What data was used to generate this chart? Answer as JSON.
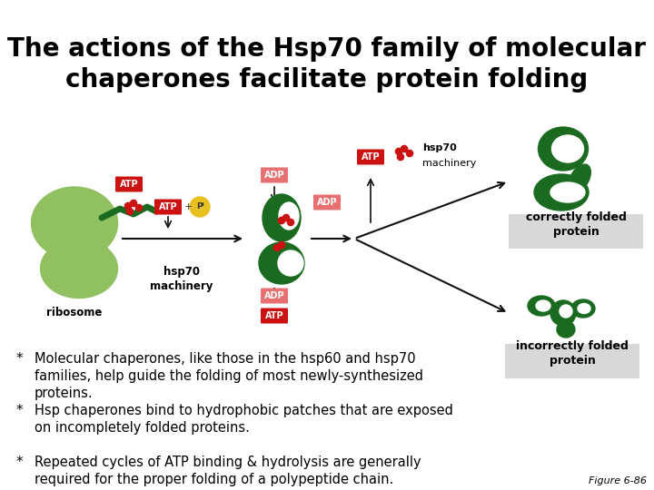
{
  "title_line1": "The actions of the Hsp70 family of molecular",
  "title_line2": "chaperones facilitate protein folding",
  "title_fontsize": 20,
  "title_bold": true,
  "bullet1_text": "Molecular chaperones, like those in the hsp60 and hsp70\nfamilies, help guide the folding of most newly-synthesized\nproteins.",
  "bullet2_text": "Hsp chaperones bind to hydrophobic patches that are exposed\non incompletely folded proteins.",
  "bullet3_text": "Repeated cycles of ATP binding & hydrolysis are generally\nrequired for the proper folding of a polypeptide chain.",
  "figure_label": "Figure 6-86",
  "bullet_fontsize": 10.5,
  "figure_label_fontsize": 8,
  "bg_color": "#ffffff",
  "text_color": "#000000",
  "green_light": "#90c060",
  "green_dark": "#1a6b20",
  "red_atp": "#cc1111",
  "red_adp_light": "#e87070",
  "yellow_pi": "#e8c020",
  "grey_box": "#d0d0d0",
  "arrow_color": "#111111"
}
